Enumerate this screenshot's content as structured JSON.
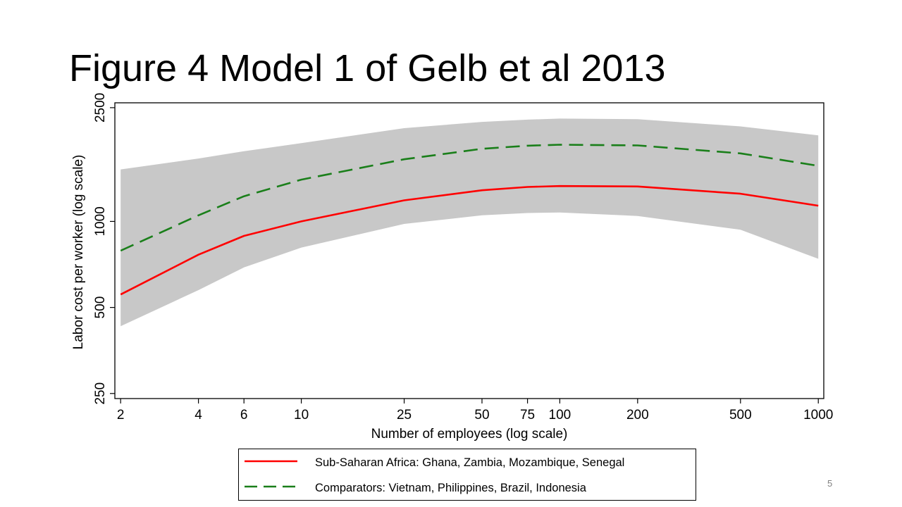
{
  "slide": {
    "title": "Figure 4 Model 1 of Gelb et al 2013",
    "page_number": "5"
  },
  "colors": {
    "band": "#c8c8c8",
    "ssa_line": "#ff0000",
    "comparators_line": "#1a7f1a",
    "axis": "#000000"
  },
  "chart_data": {
    "type": "line",
    "xlabel": "Number of employees (log scale)",
    "ylabel": "Labor cost per worker (log scale)",
    "x_scale": "log",
    "y_scale": "log",
    "xlim": [
      1.9,
      1050
    ],
    "ylim": [
      240,
      2600
    ],
    "x_ticks": [
      2,
      4,
      6,
      10,
      25,
      50,
      75,
      100,
      200,
      500,
      1000
    ],
    "x_tick_labels": [
      "2",
      "4",
      "6",
      "10",
      "25",
      "50",
      "75",
      "100",
      "200",
      "500",
      "1000"
    ],
    "y_ticks": [
      250,
      500,
      1000,
      2500
    ],
    "y_tick_labels": [
      "250",
      "500",
      "1000",
      "2500"
    ],
    "grid": false,
    "x": [
      2,
      4,
      6,
      10,
      25,
      50,
      75,
      100,
      200,
      500,
      1000
    ],
    "series": [
      {
        "name": "Sub-Saharan Africa: Ghana, Zambia, Mozambique, Senegal",
        "style": "solid",
        "values": [
          555,
          765,
          890,
          1000,
          1185,
          1285,
          1320,
          1330,
          1325,
          1250,
          1135
        ]
      },
      {
        "name": "Comparators: Vietnam, Philippines, Brazil, Indonesia",
        "style": "dashed",
        "values": [
          790,
          1050,
          1225,
          1400,
          1650,
          1795,
          1840,
          1855,
          1845,
          1730,
          1565
        ]
      }
    ],
    "band": {
      "upper": [
        1520,
        1660,
        1760,
        1880,
        2120,
        2230,
        2270,
        2290,
        2280,
        2150,
        2000
      ],
      "lower": [
        430,
        575,
        690,
        810,
        980,
        1050,
        1070,
        1075,
        1045,
        935,
        740
      ]
    },
    "legend": {
      "position": "bottom",
      "entries": [
        "Sub-Saharan Africa: Ghana, Zambia, Mozambique, Senegal",
        "Comparators: Vietnam, Philippines, Brazil, Indonesia"
      ]
    }
  }
}
